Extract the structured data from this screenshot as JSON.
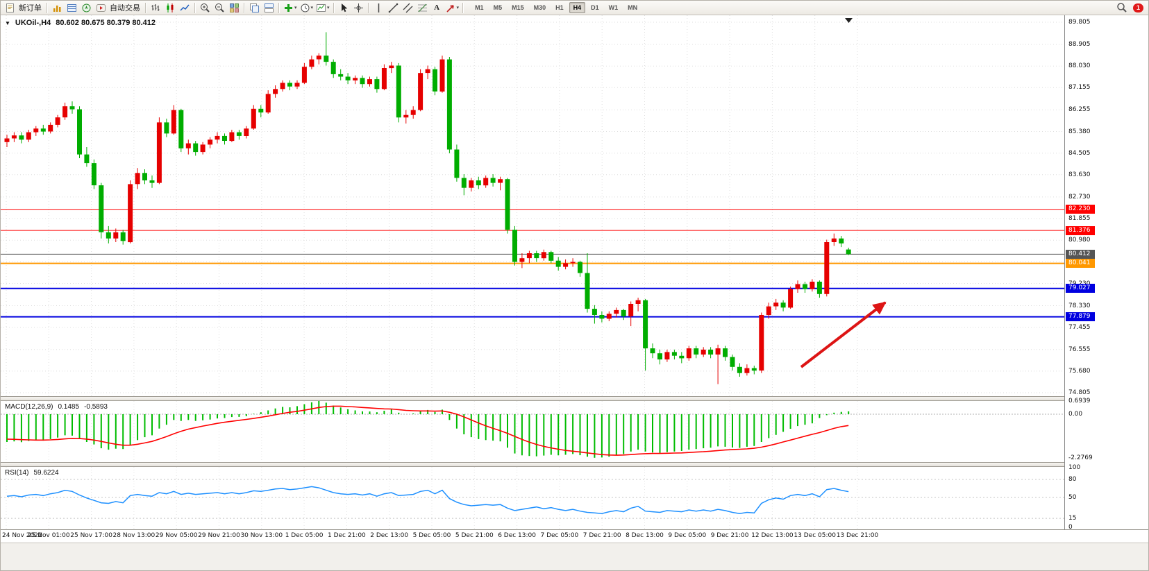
{
  "toolbar": {
    "new_order_label": "新订单",
    "autotrading_label": "自动交易",
    "text_tool_label": "A",
    "timeframes": [
      "M1",
      "M5",
      "M15",
      "M30",
      "H1",
      "H4",
      "D1",
      "W1",
      "MN"
    ],
    "active_timeframe": "H4",
    "notification_badge": "1"
  },
  "chart": {
    "symbol_title": "UKOil-,H4",
    "ohlc_values": "80.602 80.675 80.379 80.412",
    "current_price": "80.412"
  },
  "chart_data": {
    "type": "candlestick",
    "symbol": "UKOil-",
    "timeframe": "H4",
    "up_color": "#e60000",
    "down_color": "#00ad00",
    "price_axis_ticks": [
      "89.805",
      "88.905",
      "88.030",
      "87.155",
      "86.255",
      "85.380",
      "84.505",
      "83.630",
      "82.730",
      "81.855",
      "80.980",
      "80.105",
      "79.230",
      "78.330",
      "77.455",
      "76.555",
      "75.680",
      "74.805"
    ],
    "time_labels": [
      "24 Nov 2022",
      "25 Nov 01:00",
      "25 Nov 17:00",
      "28 Nov 13:00",
      "29 Nov 05:00",
      "29 Nov 21:00",
      "30 Nov 13:00",
      "1 Dec 05:00",
      "1 Dec 21:00",
      "2 Dec 13:00",
      "5 Dec 05:00",
      "5 Dec 21:00",
      "6 Dec 13:00",
      "7 Dec 05:00",
      "7 Dec 21:00",
      "8 Dec 13:00",
      "9 Dec 05:00",
      "9 Dec 21:00",
      "12 Dec 13:00",
      "13 Dec 05:00",
      "13 Dec 21:00"
    ],
    "price_lines": [
      {
        "price": 82.23,
        "label": "82.230",
        "color": "#ff0000",
        "width": 1,
        "role": "resistance"
      },
      {
        "price": 81.376,
        "label": "81.376",
        "color": "#ff0000",
        "width": 1,
        "role": "resistance"
      },
      {
        "price": 80.412,
        "label": "80.412",
        "color": "#555555",
        "width": 1,
        "role": "current-price"
      },
      {
        "price": 80.041,
        "label": "80.041",
        "color": "#ff9800",
        "width": 2,
        "role": "level"
      },
      {
        "price": 79.027,
        "label": "79.027",
        "color": "#0000e0",
        "width": 2,
        "role": "support"
      },
      {
        "price": 77.879,
        "label": "77.879",
        "color": "#0000e0",
        "width": 2,
        "role": "support"
      }
    ],
    "arrow": {
      "color": "#dd1414"
    },
    "candles": [
      [
        84.95,
        85.25,
        84.75,
        85.1
      ],
      [
        85.1,
        85.35,
        84.95,
        85.22
      ],
      [
        85.22,
        85.35,
        84.9,
        85.05
      ],
      [
        85.05,
        85.45,
        84.95,
        85.35
      ],
      [
        85.35,
        85.6,
        85.2,
        85.5
      ],
      [
        85.5,
        85.65,
        85.25,
        85.38
      ],
      [
        85.38,
        85.75,
        85.3,
        85.65
      ],
      [
        85.65,
        86.05,
        85.55,
        85.95
      ],
      [
        85.95,
        86.55,
        85.85,
        86.4
      ],
      [
        86.4,
        86.6,
        86.1,
        86.28
      ],
      [
        86.28,
        86.4,
        84.3,
        84.45
      ],
      [
        84.45,
        84.75,
        83.95,
        84.1
      ],
      [
        84.1,
        84.25,
        83.05,
        83.2
      ],
      [
        83.2,
        83.3,
        81.05,
        81.3
      ],
      [
        81.3,
        81.55,
        80.85,
        81.05
      ],
      [
        81.05,
        81.45,
        80.9,
        81.3
      ],
      [
        81.3,
        81.4,
        80.8,
        80.95
      ],
      [
        80.9,
        83.4,
        80.85,
        83.25
      ],
      [
        83.25,
        83.9,
        83.05,
        83.7
      ],
      [
        83.7,
        83.85,
        83.25,
        83.4
      ],
      [
        83.4,
        83.6,
        83.1,
        83.3
      ],
      [
        83.3,
        85.95,
        83.25,
        85.75
      ],
      [
        85.75,
        85.9,
        85.15,
        85.3
      ],
      [
        85.3,
        86.45,
        85.25,
        86.25
      ],
      [
        86.25,
        86.3,
        84.55,
        84.7
      ],
      [
        84.7,
        85.05,
        84.45,
        84.9
      ],
      [
        84.9,
        85.0,
        84.4,
        84.55
      ],
      [
        84.55,
        84.95,
        84.45,
        84.85
      ],
      [
        84.85,
        85.15,
        84.7,
        85.05
      ],
      [
        85.05,
        85.35,
        84.9,
        85.2
      ],
      [
        85.2,
        85.3,
        84.85,
        85.0
      ],
      [
        85.0,
        85.45,
        84.95,
        85.35
      ],
      [
        85.35,
        85.45,
        85.05,
        85.2
      ],
      [
        85.2,
        85.6,
        85.1,
        85.5
      ],
      [
        85.5,
        86.45,
        85.45,
        86.3
      ],
      [
        86.3,
        86.45,
        85.95,
        86.15
      ],
      [
        86.15,
        87.05,
        86.1,
        86.9
      ],
      [
        86.9,
        87.25,
        86.75,
        87.1
      ],
      [
        87.1,
        87.45,
        87.0,
        87.35
      ],
      [
        87.35,
        87.45,
        87.05,
        87.2
      ],
      [
        87.2,
        87.45,
        87.1,
        87.35
      ],
      [
        87.35,
        88.15,
        87.3,
        88.0
      ],
      [
        88.0,
        88.45,
        87.9,
        88.3
      ],
      [
        88.3,
        88.55,
        88.1,
        88.45
      ],
      [
        88.45,
        89.4,
        88.05,
        88.2
      ],
      [
        88.2,
        88.3,
        87.55,
        87.7
      ],
      [
        87.7,
        87.9,
        87.45,
        87.6
      ],
      [
        87.6,
        87.75,
        87.3,
        87.45
      ],
      [
        87.45,
        87.65,
        87.3,
        87.55
      ],
      [
        87.55,
        87.65,
        87.15,
        87.3
      ],
      [
        87.3,
        87.6,
        87.2,
        87.5
      ],
      [
        87.5,
        87.6,
        86.95,
        87.1
      ],
      [
        87.1,
        88.1,
        87.05,
        87.95
      ],
      [
        87.95,
        88.2,
        87.75,
        88.05
      ],
      [
        88.05,
        88.15,
        85.75,
        85.95
      ],
      [
        85.95,
        86.25,
        85.7,
        86.05
      ],
      [
        86.05,
        86.4,
        85.9,
        86.25
      ],
      [
        86.25,
        87.9,
        86.2,
        87.75
      ],
      [
        87.75,
        88.05,
        87.5,
        87.9
      ],
      [
        87.9,
        88.0,
        86.85,
        87.0
      ],
      [
        87.0,
        88.45,
        86.95,
        88.3
      ],
      [
        88.3,
        88.4,
        84.5,
        84.65
      ],
      [
        84.65,
        84.85,
        83.35,
        83.5
      ],
      [
        83.5,
        83.65,
        82.8,
        83.1
      ],
      [
        83.1,
        83.5,
        82.95,
        83.4
      ],
      [
        83.4,
        83.55,
        83.05,
        83.2
      ],
      [
        83.2,
        83.6,
        83.1,
        83.5
      ],
      [
        83.5,
        83.65,
        83.15,
        83.3
      ],
      [
        83.3,
        83.55,
        83.0,
        83.45
      ],
      [
        83.45,
        83.5,
        81.25,
        81.4
      ],
      [
        81.4,
        81.55,
        79.95,
        80.1
      ],
      [
        80.1,
        80.45,
        79.85,
        80.25
      ],
      [
        80.25,
        80.55,
        80.05,
        80.45
      ],
      [
        80.45,
        80.55,
        80.1,
        80.25
      ],
      [
        80.25,
        80.6,
        80.15,
        80.5
      ],
      [
        80.5,
        80.55,
        80.05,
        80.15
      ],
      [
        80.15,
        80.3,
        79.75,
        79.9
      ],
      [
        79.9,
        80.2,
        79.8,
        80.05
      ],
      [
        80.05,
        80.25,
        79.9,
        80.1
      ],
      [
        80.1,
        80.15,
        79.5,
        79.65
      ],
      [
        79.65,
        80.45,
        78.05,
        78.2
      ],
      [
        78.2,
        78.35,
        77.6,
        77.95
      ],
      [
        77.95,
        78.1,
        77.65,
        77.8
      ],
      [
        77.8,
        78.1,
        77.7,
        78.0
      ],
      [
        78.0,
        78.25,
        77.85,
        78.15
      ],
      [
        78.15,
        78.2,
        77.75,
        77.9
      ],
      [
        77.9,
        78.5,
        77.5,
        78.4
      ],
      [
        78.4,
        78.65,
        78.1,
        78.55
      ],
      [
        78.55,
        78.6,
        75.7,
        76.6
      ],
      [
        76.6,
        76.8,
        76.2,
        76.4
      ],
      [
        76.4,
        76.55,
        75.95,
        76.15
      ],
      [
        76.15,
        76.55,
        76.05,
        76.45
      ],
      [
        76.45,
        76.55,
        76.15,
        76.3
      ],
      [
        76.3,
        76.45,
        76.0,
        76.2
      ],
      [
        76.2,
        76.7,
        76.1,
        76.6
      ],
      [
        76.6,
        76.7,
        76.2,
        76.35
      ],
      [
        76.35,
        76.65,
        76.25,
        76.55
      ],
      [
        76.55,
        76.65,
        76.2,
        76.35
      ],
      [
        76.35,
        76.75,
        75.15,
        76.6
      ],
      [
        76.6,
        76.7,
        76.1,
        76.25
      ],
      [
        76.25,
        76.35,
        75.7,
        75.85
      ],
      [
        75.85,
        76.0,
        75.45,
        75.6
      ],
      [
        75.6,
        75.95,
        75.5,
        75.8
      ],
      [
        75.8,
        75.9,
        75.55,
        75.7
      ],
      [
        75.7,
        78.05,
        75.6,
        77.95
      ],
      [
        77.95,
        78.45,
        77.8,
        78.3
      ],
      [
        78.3,
        78.6,
        78.15,
        78.45
      ],
      [
        78.45,
        78.55,
        78.1,
        78.25
      ],
      [
        78.25,
        79.1,
        78.2,
        79.0
      ],
      [
        79.0,
        79.35,
        78.85,
        79.2
      ],
      [
        79.2,
        79.3,
        78.85,
        79.0
      ],
      [
        79.0,
        79.4,
        78.9,
        79.3
      ],
      [
        79.3,
        79.35,
        78.65,
        78.8
      ],
      [
        78.8,
        81.0,
        78.7,
        80.9
      ],
      [
        80.9,
        81.25,
        80.75,
        81.05
      ],
      [
        81.05,
        81.15,
        80.7,
        80.85
      ],
      [
        80.602,
        80.675,
        80.379,
        80.412
      ]
    ],
    "macd": {
      "label": "MACD(12,26,9)",
      "main_value": "0.1485",
      "signal_value": "-0.5893",
      "axis": [
        "0.6939",
        "0.00",
        "-2.2769"
      ],
      "max": 0.6939,
      "min": -2.2769,
      "hist_color": "#00bc00",
      "signal_color": "#ff0000",
      "histogram": [
        -1.45,
        -1.42,
        -1.46,
        -1.4,
        -1.35,
        -1.38,
        -1.3,
        -1.22,
        -1.1,
        -1.12,
        -1.3,
        -1.45,
        -1.58,
        -1.78,
        -1.85,
        -1.8,
        -1.82,
        -1.6,
        -1.35,
        -1.2,
        -1.1,
        -0.75,
        -0.55,
        -0.3,
        -0.35,
        -0.3,
        -0.35,
        -0.32,
        -0.28,
        -0.22,
        -0.2,
        -0.15,
        -0.14,
        -0.1,
        0.02,
        0.1,
        0.2,
        0.3,
        0.38,
        0.36,
        0.42,
        0.52,
        0.62,
        0.6939,
        0.6,
        0.45,
        0.35,
        0.26,
        0.2,
        0.15,
        0.14,
        0.1,
        0.18,
        0.25,
        0.08,
        0.0,
        0.04,
        0.15,
        0.22,
        0.12,
        0.24,
        -0.3,
        -0.75,
        -1.05,
        -1.2,
        -1.3,
        -1.35,
        -1.38,
        -1.42,
        -1.75,
        -2.05,
        -2.15,
        -2.18,
        -2.2,
        -2.16,
        -2.12,
        -2.15,
        -2.12,
        -2.08,
        -2.14,
        -2.22,
        -2.2769,
        -2.26,
        -2.22,
        -2.15,
        -2.08,
        -1.95,
        -1.85,
        -1.95,
        -2.0,
        -2.02,
        -1.98,
        -1.95,
        -1.92,
        -1.85,
        -1.82,
        -1.78,
        -1.75,
        -1.68,
        -1.7,
        -1.74,
        -1.76,
        -1.7,
        -1.66,
        -1.45,
        -1.25,
        -1.08,
        -0.92,
        -0.76,
        -0.62,
        -0.55,
        -0.48,
        -0.2,
        -0.05,
        0.08,
        0.12,
        0.1485
      ],
      "signal": [
        -1.3,
        -1.31,
        -1.33,
        -1.34,
        -1.35,
        -1.35,
        -1.34,
        -1.32,
        -1.29,
        -1.26,
        -1.27,
        -1.3,
        -1.35,
        -1.42,
        -1.5,
        -1.57,
        -1.62,
        -1.62,
        -1.57,
        -1.5,
        -1.42,
        -1.3,
        -1.17,
        -1.02,
        -0.89,
        -0.78,
        -0.7,
        -0.62,
        -0.55,
        -0.48,
        -0.42,
        -0.37,
        -0.32,
        -0.27,
        -0.22,
        -0.16,
        -0.1,
        -0.03,
        0.04,
        0.1,
        0.15,
        0.21,
        0.28,
        0.35,
        0.4,
        0.42,
        0.42,
        0.4,
        0.38,
        0.35,
        0.33,
        0.3,
        0.28,
        0.27,
        0.24,
        0.2,
        0.18,
        0.17,
        0.17,
        0.16,
        0.17,
        0.1,
        0.0,
        -0.14,
        -0.3,
        -0.46,
        -0.61,
        -0.74,
        -0.86,
        -1.0,
        -1.16,
        -1.32,
        -1.46,
        -1.58,
        -1.68,
        -1.76,
        -1.83,
        -1.89,
        -1.93,
        -1.97,
        -2.02,
        -2.07,
        -2.11,
        -2.13,
        -2.14,
        -2.13,
        -2.11,
        -2.08,
        -2.06,
        -2.05,
        -2.05,
        -2.04,
        -2.03,
        -2.02,
        -2.0,
        -1.98,
        -1.96,
        -1.93,
        -1.9,
        -1.87,
        -1.85,
        -1.83,
        -1.81,
        -1.78,
        -1.72,
        -1.64,
        -1.55,
        -1.45,
        -1.35,
        -1.25,
        -1.15,
        -1.05,
        -0.96,
        -0.85,
        -0.74,
        -0.65,
        -0.5893
      ]
    },
    "rsi": {
      "label": "RSI(14)",
      "value": "59.6224",
      "axis": [
        "100",
        "80",
        "50",
        "15",
        "0"
      ],
      "levels": [
        80,
        50,
        15
      ],
      "line_color": "#1e90ff",
      "values": [
        52,
        53,
        51,
        54,
        55,
        53,
        56,
        58,
        62,
        60,
        54,
        49,
        45,
        41,
        40,
        43,
        41,
        53,
        55,
        53,
        52,
        58,
        56,
        60,
        55,
        57,
        55,
        56,
        57,
        58,
        56,
        58,
        56,
        58,
        61,
        60,
        62,
        64,
        65,
        63,
        64,
        66,
        68,
        66,
        62,
        58,
        56,
        55,
        56,
        54,
        56,
        52,
        56,
        58,
        53,
        54,
        55,
        60,
        62,
        56,
        62,
        48,
        42,
        38,
        36,
        37,
        38,
        37,
        38,
        32,
        28,
        30,
        32,
        34,
        31,
        33,
        30,
        28,
        30,
        27,
        25,
        24,
        23,
        26,
        28,
        26,
        32,
        35,
        27,
        26,
        25,
        28,
        27,
        26,
        29,
        27,
        29,
        27,
        30,
        28,
        25,
        23,
        25,
        24,
        40,
        46,
        49,
        47,
        53,
        55,
        53,
        56,
        51,
        63,
        65,
        62,
        59.6224
      ]
    }
  }
}
